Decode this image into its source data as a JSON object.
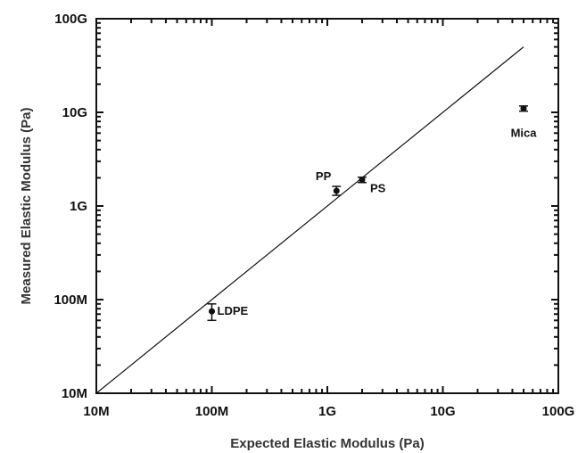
{
  "chart_data": {
    "type": "scatter",
    "title": "",
    "xlabel": "Expected Elastic Modulus (Pa)",
    "ylabel": "Measured Elastic Modulus (Pa)",
    "xscale": "log",
    "yscale": "log",
    "xlim": [
      10000000,
      100000000000
    ],
    "ylim": [
      10000000,
      100000000000
    ],
    "x_ticks": [
      {
        "value": 10000000,
        "label": "10M"
      },
      {
        "value": 100000000,
        "label": "100M"
      },
      {
        "value": 1000000000,
        "label": "1G"
      },
      {
        "value": 10000000000,
        "label": "10G"
      },
      {
        "value": 100000000000,
        "label": "100G"
      }
    ],
    "y_ticks": [
      {
        "value": 10000000,
        "label": "10M"
      },
      {
        "value": 100000000,
        "label": "100M"
      },
      {
        "value": 1000000000,
        "label": "1G"
      },
      {
        "value": 10000000000,
        "label": "10G"
      },
      {
        "value": 100000000000,
        "label": "100G"
      }
    ],
    "reference_line": {
      "x": [
        10000000,
        50000000000
      ],
      "y": [
        10000000,
        50000000000
      ]
    },
    "points": [
      {
        "label": "LDPE",
        "x": 100000000,
        "y": 75000000,
        "yerr_low": 60000000,
        "yerr_high": 90000000
      },
      {
        "label": "PP",
        "x": 1200000000,
        "y": 1450000000,
        "yerr_low": 1300000000,
        "yerr_high": 1620000000
      },
      {
        "label": "PS",
        "x": 2000000000,
        "y": 1900000000,
        "yerr_low": 1780000000,
        "yerr_high": 2030000000
      },
      {
        "label": "Mica",
        "x": 50000000000,
        "y": 11000000000,
        "yerr_low": 10300000000,
        "yerr_high": 11700000000
      }
    ],
    "grid": false,
    "legend": "none"
  }
}
